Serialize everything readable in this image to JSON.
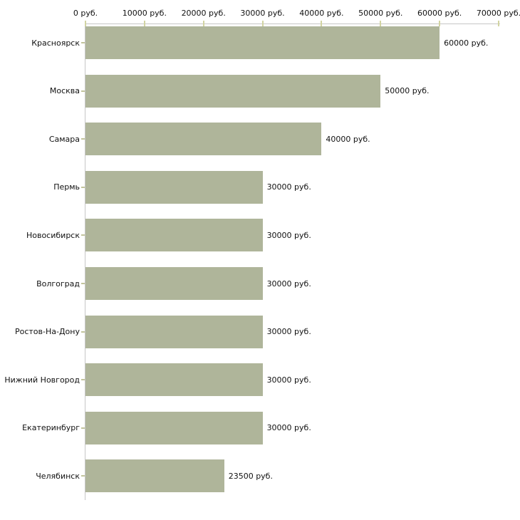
{
  "chart_data": {
    "type": "bar",
    "orientation": "horizontal",
    "title": "",
    "xlabel": "",
    "ylabel": "",
    "xlim": [
      0,
      70000
    ],
    "grid": false,
    "legend": "none",
    "x_ticks": [
      0,
      10000,
      20000,
      30000,
      40000,
      50000,
      60000,
      70000
    ],
    "x_tick_labels": [
      "0 руб.",
      "10000 руб.",
      "20000 руб.",
      "30000 руб.",
      "40000 руб.",
      "50000 руб.",
      "60000 руб.",
      "70000 руб."
    ],
    "categories": [
      "Красноярск",
      "Москва",
      "Самара",
      "Пермь",
      "Новосибирск",
      "Волгоград",
      "Ростов-На-Дону",
      "Нижний Новгород",
      "Екатеринбург",
      "Челябинск"
    ],
    "values": [
      60000,
      50000,
      40000,
      30000,
      30000,
      30000,
      30000,
      30000,
      30000,
      23500
    ],
    "value_labels": [
      "60000 руб.",
      "50000 руб.",
      "40000 руб.",
      "30000 руб.",
      "30000 руб.",
      "30000 руб.",
      "30000 руб.",
      "30000 руб.",
      "30000 руб.",
      "23500 руб."
    ],
    "colors": {
      "bar": "#afb59a",
      "axis": "#c6c6c6",
      "tick": "#d2d4a2",
      "category_tick": "#c2c49c",
      "text": "#111111",
      "background": "#ffffff"
    }
  }
}
